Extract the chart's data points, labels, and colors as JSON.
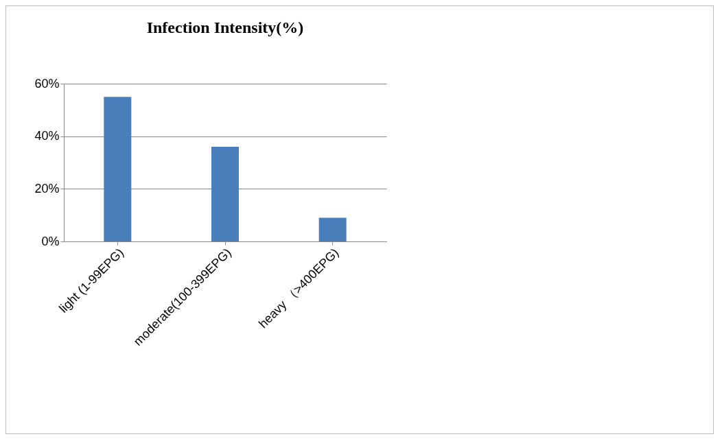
{
  "chart_data": {
    "type": "bar",
    "title": "Infection  Intensity(%)",
    "categories": [
      "light (1-99EPG)",
      "moderate(100-399EPG)",
      "heavy （>400EPG)"
    ],
    "values": [
      55,
      36,
      9
    ],
    "color": "#4a7ebb",
    "ylim": [
      0,
      60
    ],
    "yticks": [
      {
        "value": 0,
        "label": "0%"
      },
      {
        "value": 20,
        "label": "20%"
      },
      {
        "value": 40,
        "label": "40%"
      },
      {
        "value": 60,
        "label": "60%"
      }
    ],
    "grid": "y"
  }
}
